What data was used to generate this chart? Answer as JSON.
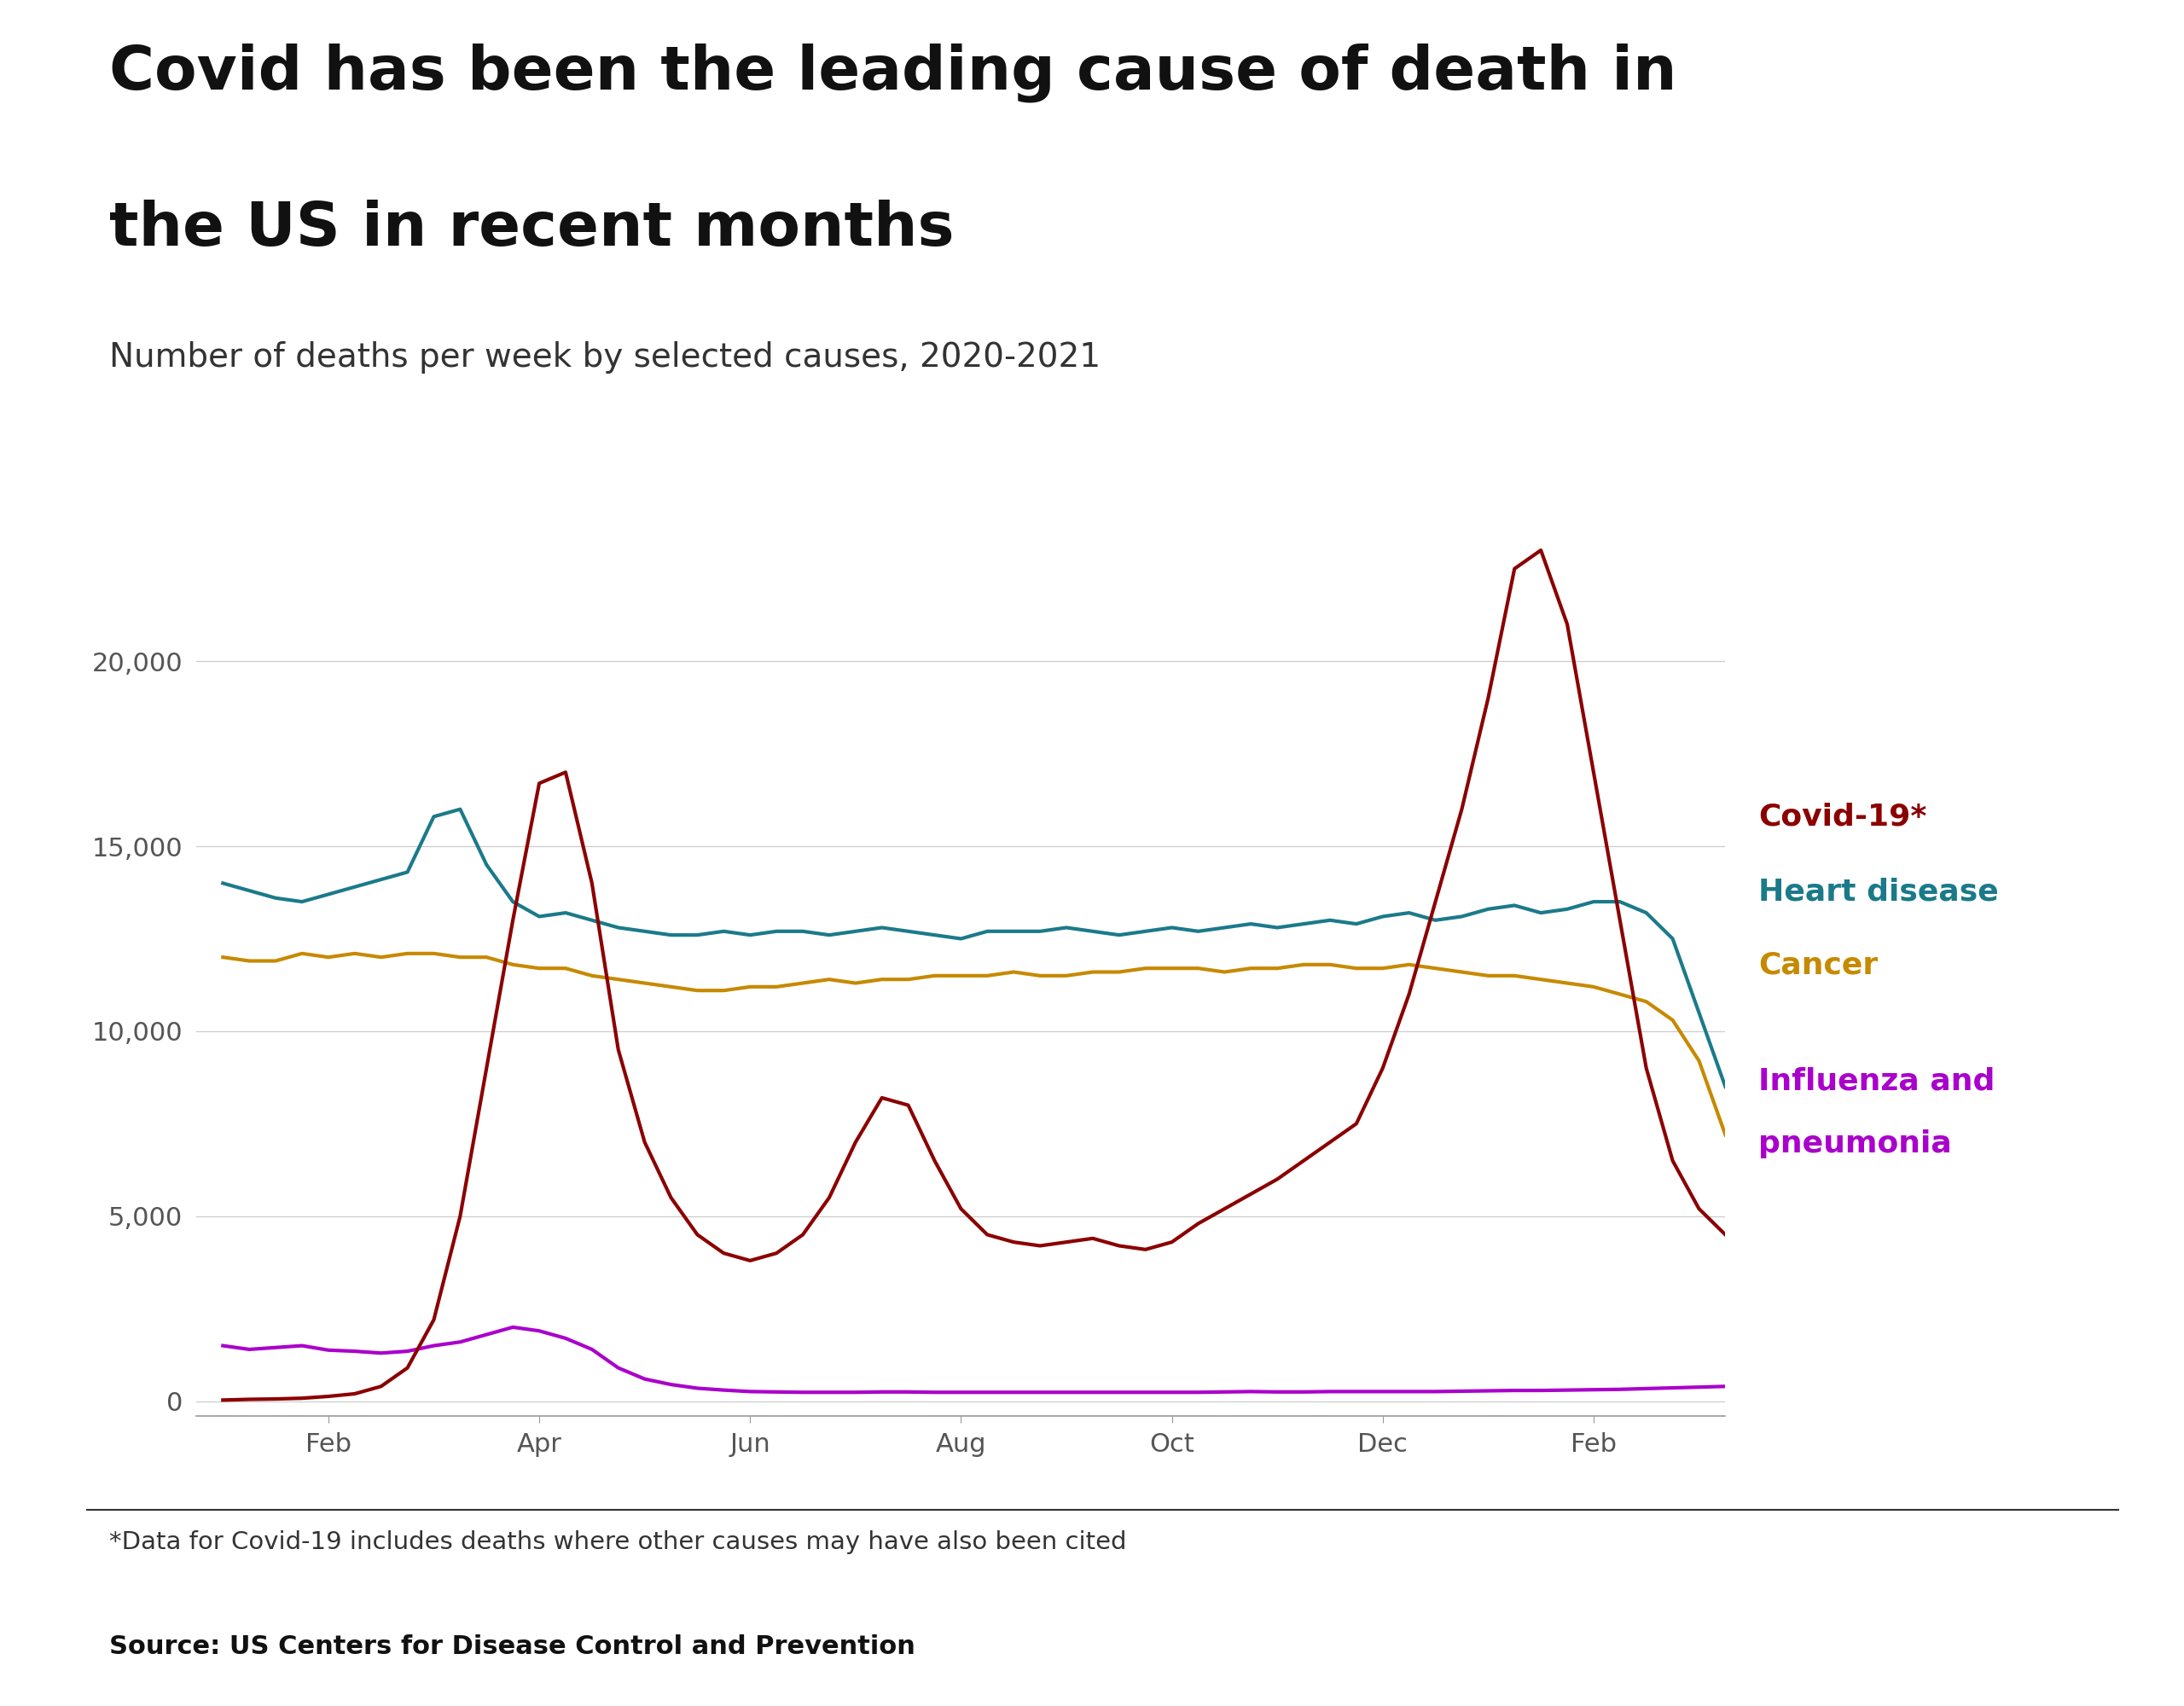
{
  "title_line1": "Covid has been the leading cause of death in",
  "title_line2": "the US in recent months",
  "subtitle": "Number of deaths per week by selected causes, 2020-2021",
  "footnote": "*Data for Covid-19 includes deaths where other causes may have also been cited",
  "source": "Source: US Centers for Disease Control and Prevention",
  "background_color": "#ffffff",
  "x_tick_labels": [
    "Feb",
    "Apr",
    "Jun",
    "Aug",
    "Oct",
    "Dec",
    "Feb"
  ],
  "y_ticks": [
    0,
    5000,
    10000,
    15000,
    20000
  ],
  "y_tick_labels": [
    "0",
    "5,000",
    "10,000",
    "15,000",
    "20,000"
  ],
  "ylim": [
    -400,
    24500
  ],
  "colors": {
    "covid": "#8B0000",
    "heart": "#1B7A8A",
    "cancer": "#C68A00",
    "flu": "#AA00CC"
  },
  "legend": {
    "covid_label": "Covid-19*",
    "heart_label": "Heart disease",
    "cancer_label": "Cancer",
    "flu_label_1": "Influenza and",
    "flu_label_2": "pneumonia"
  },
  "covid_x": [
    0,
    1,
    2,
    3,
    4,
    5,
    6,
    7,
    8,
    9,
    10,
    11,
    12,
    13,
    14,
    15,
    16,
    17,
    18,
    19,
    20,
    21,
    22,
    23,
    24,
    25,
    26,
    27,
    28,
    29,
    30,
    31,
    32,
    33,
    34,
    35,
    36,
    37,
    38,
    39,
    40,
    41,
    42,
    43,
    44,
    45,
    46,
    47,
    48,
    49,
    50,
    51,
    52,
    53,
    54,
    55,
    56,
    57
  ],
  "covid_y": [
    30,
    50,
    60,
    80,
    130,
    200,
    400,
    900,
    2200,
    5000,
    9000,
    13000,
    16700,
    17000,
    14000,
    9500,
    7000,
    5500,
    4500,
    4000,
    3800,
    4000,
    4500,
    5500,
    7000,
    8200,
    8000,
    6500,
    5200,
    4500,
    4300,
    4200,
    4300,
    4400,
    4200,
    4100,
    4300,
    4800,
    5200,
    5600,
    6000,
    6500,
    7000,
    7500,
    9000,
    11000,
    13500,
    16000,
    19000,
    22500,
    23000,
    21000,
    17000,
    13000,
    9000,
    6500,
    5200,
    4500
  ],
  "heart_x": [
    0,
    1,
    2,
    3,
    4,
    5,
    6,
    7,
    8,
    9,
    10,
    11,
    12,
    13,
    14,
    15,
    16,
    17,
    18,
    19,
    20,
    21,
    22,
    23,
    24,
    25,
    26,
    27,
    28,
    29,
    30,
    31,
    32,
    33,
    34,
    35,
    36,
    37,
    38,
    39,
    40,
    41,
    42,
    43,
    44,
    45,
    46,
    47,
    48,
    49,
    50,
    51,
    52,
    53,
    54,
    55,
    56,
    57
  ],
  "heart_y": [
    14000,
    13800,
    13600,
    13500,
    13700,
    13900,
    14100,
    14300,
    15800,
    16000,
    14500,
    13500,
    13100,
    13200,
    13000,
    12800,
    12700,
    12600,
    12600,
    12700,
    12600,
    12700,
    12700,
    12600,
    12700,
    12800,
    12700,
    12600,
    12500,
    12700,
    12700,
    12700,
    12800,
    12700,
    12600,
    12700,
    12800,
    12700,
    12800,
    12900,
    12800,
    12900,
    13000,
    12900,
    13100,
    13200,
    13000,
    13100,
    13300,
    13400,
    13200,
    13300,
    13500,
    13500,
    13200,
    12500,
    10500,
    8500
  ],
  "cancer_x": [
    0,
    1,
    2,
    3,
    4,
    5,
    6,
    7,
    8,
    9,
    10,
    11,
    12,
    13,
    14,
    15,
    16,
    17,
    18,
    19,
    20,
    21,
    22,
    23,
    24,
    25,
    26,
    27,
    28,
    29,
    30,
    31,
    32,
    33,
    34,
    35,
    36,
    37,
    38,
    39,
    40,
    41,
    42,
    43,
    44,
    45,
    46,
    47,
    48,
    49,
    50,
    51,
    52,
    53,
    54,
    55,
    56,
    57
  ],
  "cancer_y": [
    12000,
    11900,
    11900,
    12100,
    12000,
    12100,
    12000,
    12100,
    12100,
    12000,
    12000,
    11800,
    11700,
    11700,
    11500,
    11400,
    11300,
    11200,
    11100,
    11100,
    11200,
    11200,
    11300,
    11400,
    11300,
    11400,
    11400,
    11500,
    11500,
    11500,
    11600,
    11500,
    11500,
    11600,
    11600,
    11700,
    11700,
    11700,
    11600,
    11700,
    11700,
    11800,
    11800,
    11700,
    11700,
    11800,
    11700,
    11600,
    11500,
    11500,
    11400,
    11300,
    11200,
    11000,
    10800,
    10300,
    9200,
    7200
  ],
  "flu_x": [
    0,
    1,
    2,
    3,
    4,
    5,
    6,
    7,
    8,
    9,
    10,
    11,
    12,
    13,
    14,
    15,
    16,
    17,
    18,
    19,
    20,
    21,
    22,
    23,
    24,
    25,
    26,
    27,
    28,
    29,
    30,
    31,
    32,
    33,
    34,
    35,
    36,
    37,
    38,
    39,
    40,
    41,
    42,
    43,
    44,
    45,
    46,
    47,
    48,
    49,
    50,
    51,
    52,
    53,
    54,
    55,
    56,
    57
  ],
  "flu_y": [
    1500,
    1400,
    1450,
    1500,
    1380,
    1350,
    1300,
    1350,
    1500,
    1600,
    1800,
    2000,
    1900,
    1700,
    1400,
    900,
    600,
    450,
    350,
    300,
    260,
    250,
    240,
    240,
    240,
    250,
    250,
    240,
    240,
    240,
    240,
    240,
    240,
    240,
    240,
    240,
    240,
    240,
    250,
    260,
    250,
    250,
    260,
    260,
    260,
    260,
    260,
    270,
    280,
    290,
    290,
    300,
    310,
    320,
    340,
    360,
    380,
    400
  ]
}
